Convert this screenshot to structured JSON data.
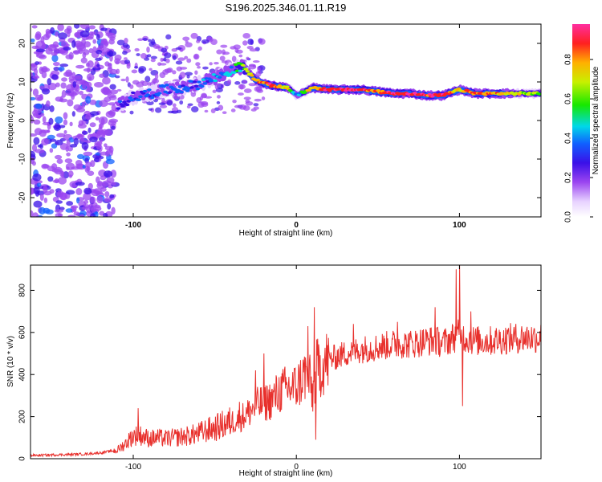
{
  "figure_title": "S196.2025.346.01.11.R19",
  "chart_data": [
    {
      "type": "heatmap",
      "title": "S196.2025.346.01.11.R19",
      "xlabel": "Height of straight line (km)",
      "ylabel": "Frequency (Hz)",
      "xlim": [
        -163,
        150
      ],
      "ylim": [
        -25,
        25
      ],
      "xticks": [
        -100,
        0,
        100
      ],
      "yticks": [
        -20,
        -10,
        0,
        10,
        20
      ],
      "colorbar": {
        "label": "Normalized spectral amplitude",
        "range": [
          0,
          0.98
        ],
        "ticks": [
          0.0,
          0.2,
          0.4,
          0.6,
          0.8
        ],
        "tick_labels": [
          "0.0",
          "0.2",
          "0.4",
          "0.6",
          "0.8"
        ]
      },
      "ridge": {
        "description": "dominant frequency ridge",
        "x": [
          -110,
          -100,
          -90,
          -80,
          -70,
          -60,
          -50,
          -40,
          -33,
          -25,
          -15,
          -5,
          0,
          10,
          20,
          30,
          40,
          50,
          60,
          70,
          80,
          90,
          100,
          110,
          120,
          130,
          140,
          150
        ],
        "freq": [
          4,
          6,
          7,
          8,
          8.5,
          9.5,
          11,
          13,
          14,
          10.5,
          9,
          8.5,
          6.5,
          8.5,
          8,
          8,
          8,
          7.5,
          7,
          7,
          6.5,
          6.5,
          8,
          7,
          7,
          7,
          7,
          7
        ],
        "amplitude": [
          0.25,
          0.3,
          0.3,
          0.32,
          0.3,
          0.3,
          0.35,
          0.4,
          0.55,
          0.8,
          0.85,
          0.7,
          0.35,
          0.75,
          0.9,
          0.9,
          0.85,
          0.8,
          0.9,
          0.9,
          0.85,
          0.85,
          0.7,
          0.85,
          0.75,
          0.7,
          0.6,
          0.6
        ]
      }
    },
    {
      "type": "line",
      "xlabel": "Height of straight line (km)",
      "ylabel": "SNR (10 * v/v)",
      "xlim": [
        -163,
        150
      ],
      "ylim": [
        0,
        920
      ],
      "xticks": [
        -100,
        0,
        100
      ],
      "yticks": [
        0,
        200,
        400,
        600,
        800
      ],
      "series": [
        {
          "name": "SNR",
          "color": "#e8302c",
          "x": [
            -163,
            -150,
            -140,
            -130,
            -120,
            -110,
            -105,
            -100,
            -95,
            -90,
            -85,
            -80,
            -75,
            -70,
            -65,
            -60,
            -55,
            -50,
            -45,
            -40,
            -35,
            -30,
            -25,
            -20,
            -15,
            -10,
            -5,
            0,
            5,
            8,
            10,
            12,
            15,
            20,
            30,
            40,
            50,
            60,
            70,
            80,
            85,
            90,
            95,
            100,
            102,
            105,
            110,
            120,
            130,
            140,
            150
          ],
          "values": [
            15,
            18,
            20,
            22,
            28,
            40,
            70,
            110,
            110,
            95,
            100,
            95,
            100,
            105,
            110,
            120,
            135,
            145,
            160,
            175,
            190,
            215,
            250,
            265,
            280,
            320,
            335,
            340,
            400,
            380,
            300,
            420,
            440,
            470,
            500,
            520,
            530,
            545,
            545,
            560,
            560,
            550,
            570,
            590,
            580,
            570,
            560,
            560,
            570,
            575,
            575
          ],
          "spikes": [
            [
              -97,
              240
            ],
            [
              -35,
              270
            ],
            [
              -25,
              420
            ],
            [
              -20,
              500
            ],
            [
              7,
              630
            ],
            [
              11,
              720
            ],
            [
              12,
              90
            ],
            [
              35,
              640
            ],
            [
              62,
              650
            ],
            [
              85,
              720
            ],
            [
              98,
              900
            ],
            [
              100,
              920
            ],
            [
              102,
              250
            ],
            [
              107,
              700
            ]
          ]
        }
      ]
    }
  ]
}
